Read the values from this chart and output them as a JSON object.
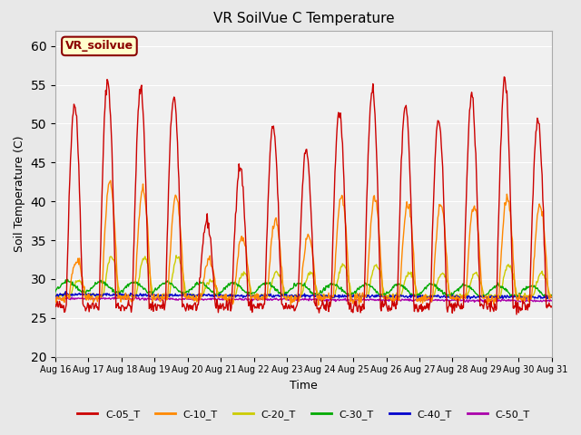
{
  "title": "VR SoilVue C Temperature",
  "xlabel": "Time",
  "ylabel": "Soil Temperature (C)",
  "ylim": [
    20,
    62
  ],
  "yticks": [
    20,
    25,
    30,
    35,
    40,
    45,
    50,
    55,
    60
  ],
  "background_color": "#e8e8e8",
  "plot_bg_color": "#f0f0f0",
  "legend_label": "VR_soilvue",
  "series_colors": {
    "C-05_T": "#cc0000",
    "C-10_T": "#ff8800",
    "C-20_T": "#cccc00",
    "C-30_T": "#00aa00",
    "C-40_T": "#0000cc",
    "C-50_T": "#aa00aa"
  },
  "num_days": 15,
  "xtick_positions": [
    0,
    1,
    2,
    3,
    4,
    5,
    6,
    7,
    8,
    9,
    10,
    11,
    12,
    13,
    14,
    15
  ],
  "xtick_labels": [
    "Aug 16",
    "Aug 17",
    "Aug 18",
    "Aug 19",
    "Aug 20",
    "Aug 21",
    "Aug 22",
    "Aug 23",
    "Aug 24",
    "Aug 25",
    "Aug 26",
    "Aug 27",
    "Aug 28",
    "Aug 29",
    "Aug 30",
    "Aug 31"
  ]
}
